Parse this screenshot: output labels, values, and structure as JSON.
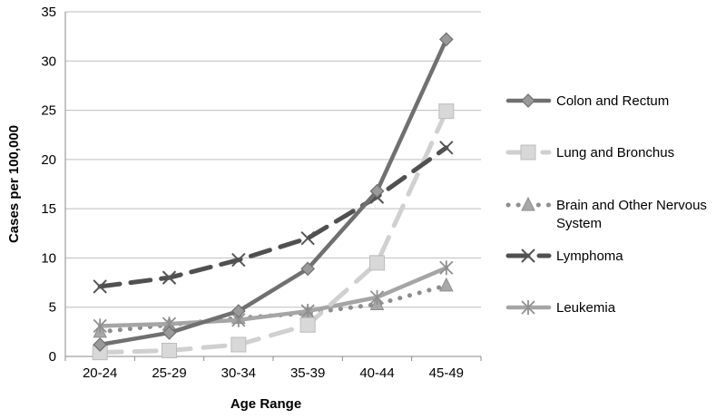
{
  "chart_data": {
    "type": "line",
    "title": "",
    "xlabel": "Age Range",
    "ylabel": "Cases per 100,000",
    "categories": [
      "20-24",
      "25-29",
      "30-34",
      "35-39",
      "40-44",
      "45-49"
    ],
    "ylim": [
      0,
      35
    ],
    "yticks": [
      "0",
      "5",
      "10",
      "15",
      "20",
      "25",
      "30",
      "35"
    ],
    "grid": true,
    "legend_position": "right",
    "series": [
      {
        "name": "Colon and Rectum",
        "values": [
          1.2,
          2.4,
          4.6,
          8.9,
          16.8,
          32.2
        ],
        "color": "#707070",
        "dash": "solid",
        "marker": "diamond"
      },
      {
        "name": "Lung and Bronchus",
        "values": [
          0.4,
          0.6,
          1.2,
          3.2,
          9.5,
          24.9
        ],
        "color": "#d0d0d0",
        "dash": "longdash",
        "marker": "square"
      },
      {
        "name": "Brain and Other Nervous System",
        "values": [
          2.5,
          3.2,
          3.9,
          4.4,
          5.3,
          7.2
        ],
        "color": "#8e8e8e",
        "dash": "dot",
        "marker": "triangle"
      },
      {
        "name": "Lymphoma",
        "values": [
          7.1,
          8.0,
          9.8,
          12.0,
          16.2,
          21.2
        ],
        "color": "#505050",
        "dash": "dash",
        "marker": "x"
      },
      {
        "name": "Leukemia",
        "values": [
          3.1,
          3.3,
          3.7,
          4.6,
          6.0,
          9.0
        ],
        "color": "#a5a5a5",
        "dash": "solid",
        "marker": "star"
      }
    ],
    "legend_lines": [
      [
        "Colon and Rectum"
      ],
      [
        "Lung and Bronchus"
      ],
      [
        "Brain and Other Nervous",
        "System"
      ],
      [
        "Lymphoma"
      ],
      [
        "Leukemia"
      ]
    ]
  }
}
